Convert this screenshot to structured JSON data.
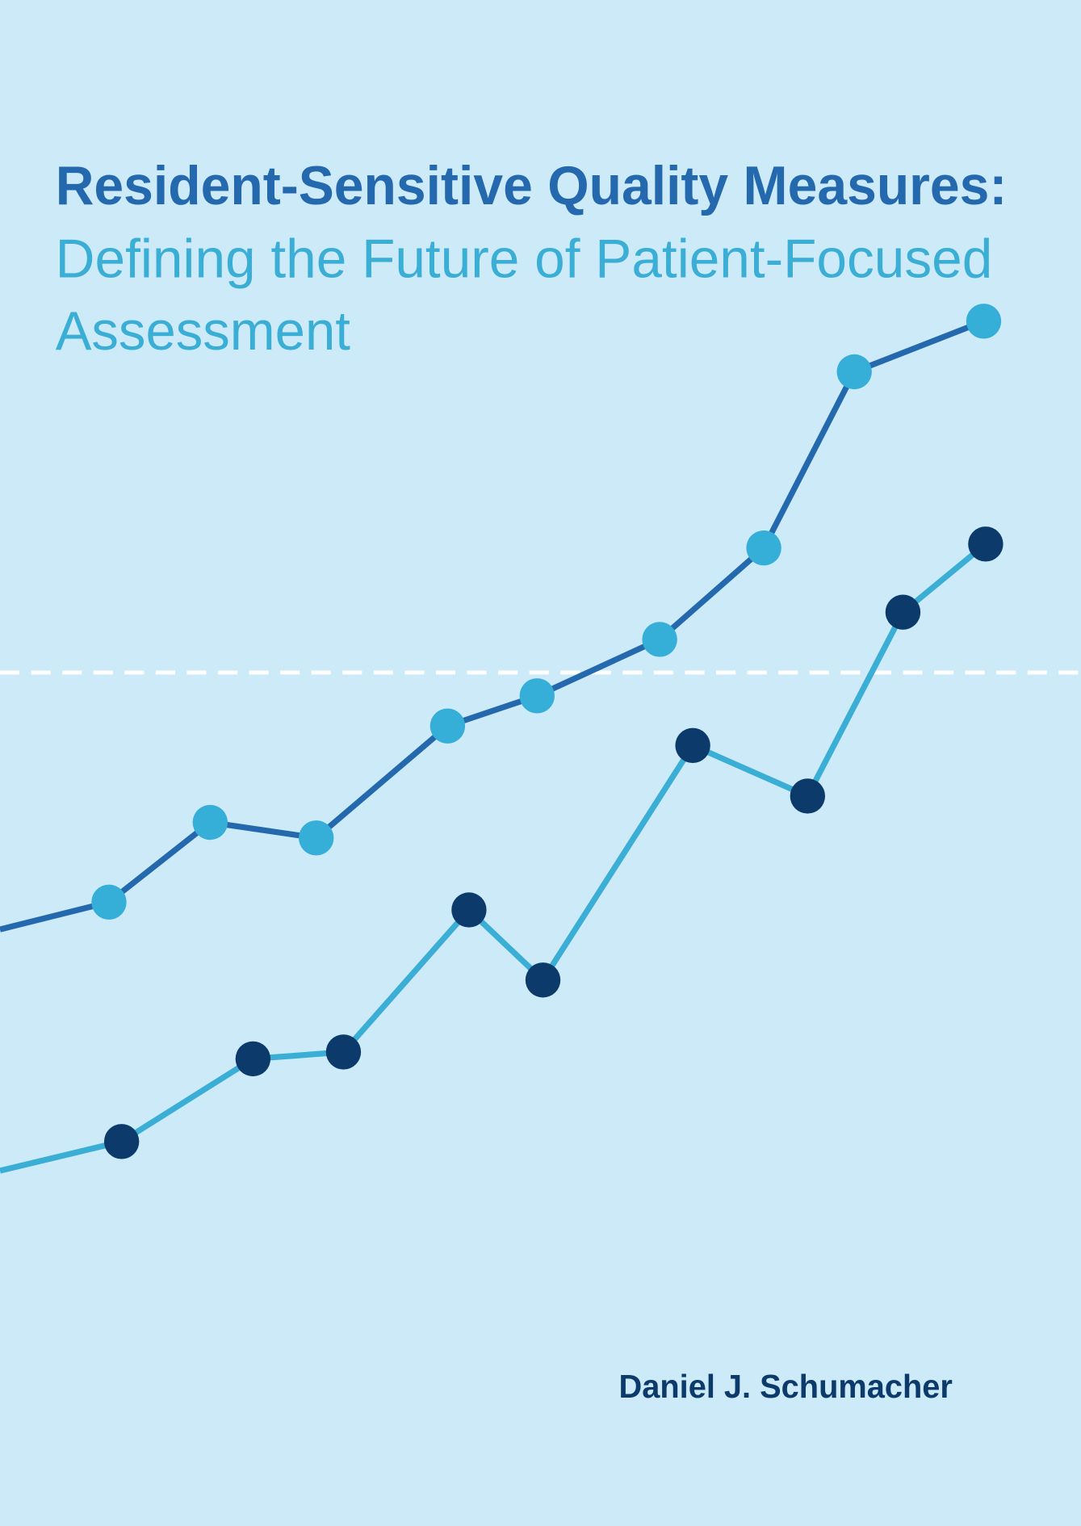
{
  "cover": {
    "title": "Resident-Sensitive Quality Measures:",
    "subtitle_lines": [
      "Defining the Future of Patient-Focused",
      "Assessment"
    ],
    "author": "Daniel J. Schumacher"
  }
}
